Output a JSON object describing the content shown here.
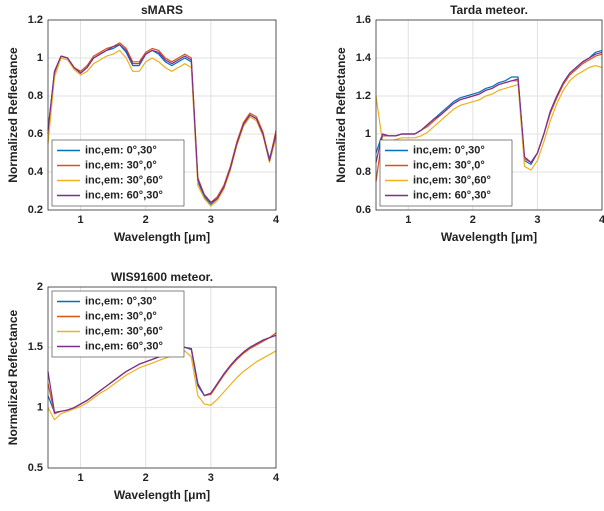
{
  "chart_data": [
    {
      "type": "line",
      "title": "sMARS",
      "xlabel": "Wavelength [μm]",
      "ylabel": "Normalized Reflectance",
      "x": [
        0.5,
        0.6,
        0.7,
        0.8,
        0.9,
        1,
        1.1,
        1.2,
        1.3,
        1.4,
        1.5,
        1.6,
        1.7,
        1.8,
        1.9,
        2,
        2.1,
        2.2,
        2.3,
        2.4,
        2.5,
        2.6,
        2.7,
        2.8,
        2.9,
        3,
        3.1,
        3.2,
        3.3,
        3.4,
        3.5,
        3.6,
        3.7,
        3.8,
        3.9,
        4
      ],
      "xlim": [
        0.5,
        4
      ],
      "xticks": [
        1,
        2,
        3,
        4
      ],
      "ylim": [
        0.2,
        1.2
      ],
      "yticks": [
        0.2,
        0.4,
        0.6,
        0.8,
        1,
        1.2
      ],
      "grid": true,
      "legend": "lower left",
      "series": [
        {
          "name": "inc,em: 0°,30°",
          "color": "#0072BD",
          "values": [
            0.62,
            0.93,
            1.01,
            1.0,
            0.95,
            0.92,
            0.95,
            1.0,
            1.02,
            1.04,
            1.05,
            1.07,
            1.03,
            0.96,
            0.96,
            1.02,
            1.04,
            1.02,
            0.98,
            0.96,
            0.98,
            1.0,
            0.98,
            0.35,
            0.27,
            0.23,
            0.26,
            0.32,
            0.42,
            0.55,
            0.65,
            0.7,
            0.68,
            0.6,
            0.47,
            0.6
          ]
        },
        {
          "name": "inc,em: 30°,0°",
          "color": "#D95319",
          "values": [
            0.6,
            0.92,
            1.01,
            1.0,
            0.95,
            0.93,
            0.96,
            1.01,
            1.03,
            1.05,
            1.06,
            1.08,
            1.05,
            0.98,
            0.98,
            1.03,
            1.05,
            1.04,
            1.0,
            0.98,
            1.0,
            1.02,
            1.0,
            0.37,
            0.28,
            0.24,
            0.27,
            0.33,
            0.43,
            0.56,
            0.66,
            0.71,
            0.69,
            0.61,
            0.46,
            0.62
          ]
        },
        {
          "name": "inc,em: 30°,60°",
          "color": "#EDB120",
          "values": [
            0.55,
            0.9,
            1.0,
            0.99,
            0.94,
            0.91,
            0.93,
            0.97,
            0.99,
            1.01,
            1.02,
            1.04,
            1.0,
            0.93,
            0.93,
            0.98,
            1.0,
            0.98,
            0.95,
            0.93,
            0.95,
            0.97,
            0.95,
            0.33,
            0.26,
            0.22,
            0.25,
            0.31,
            0.41,
            0.54,
            0.64,
            0.69,
            0.67,
            0.59,
            0.45,
            0.58
          ]
        },
        {
          "name": "inc,em: 60°,30°",
          "color": "#7E2F8E",
          "values": [
            0.62,
            0.93,
            1.01,
            1.0,
            0.95,
            0.92,
            0.95,
            1.0,
            1.02,
            1.04,
            1.06,
            1.07,
            1.04,
            0.97,
            0.97,
            1.02,
            1.04,
            1.03,
            0.99,
            0.97,
            0.99,
            1.01,
            0.99,
            0.36,
            0.28,
            0.24,
            0.26,
            0.32,
            0.42,
            0.55,
            0.65,
            0.7,
            0.68,
            0.6,
            0.46,
            0.6
          ]
        }
      ]
    },
    {
      "type": "line",
      "title": "Tarda meteor.",
      "xlabel": "Wavelength [μm]",
      "ylabel": "Normalized Reflectance",
      "x": [
        0.5,
        0.6,
        0.7,
        0.8,
        0.9,
        1,
        1.1,
        1.2,
        1.3,
        1.4,
        1.5,
        1.6,
        1.7,
        1.8,
        1.9,
        2,
        2.1,
        2.2,
        2.3,
        2.4,
        2.5,
        2.6,
        2.7,
        2.8,
        2.9,
        3,
        3.1,
        3.2,
        3.3,
        3.4,
        3.5,
        3.6,
        3.7,
        3.8,
        3.9,
        4
      ],
      "xlim": [
        0.5,
        4
      ],
      "xticks": [
        1,
        2,
        3,
        4
      ],
      "ylim": [
        0.6,
        1.6
      ],
      "yticks": [
        0.6,
        0.8,
        1,
        1.2,
        1.4,
        1.6
      ],
      "grid": true,
      "legend": "lower left",
      "series": [
        {
          "name": "inc,em: 0°,30°",
          "color": "#0072BD",
          "values": [
            0.9,
            1.0,
            0.99,
            0.99,
            1.0,
            1.0,
            1.0,
            1.02,
            1.05,
            1.08,
            1.11,
            1.14,
            1.17,
            1.19,
            1.2,
            1.21,
            1.22,
            1.24,
            1.25,
            1.27,
            1.28,
            1.3,
            1.3,
            0.86,
            0.84,
            0.9,
            1.0,
            1.12,
            1.2,
            1.27,
            1.32,
            1.35,
            1.38,
            1.4,
            1.43,
            1.44
          ]
        },
        {
          "name": "inc,em: 30°,0°",
          "color": "#D95319",
          "values": [
            0.75,
            0.99,
            0.99,
            0.99,
            1.0,
            1.0,
            1.0,
            1.02,
            1.04,
            1.07,
            1.1,
            1.13,
            1.16,
            1.18,
            1.19,
            1.2,
            1.21,
            1.23,
            1.24,
            1.26,
            1.27,
            1.28,
            1.28,
            0.87,
            0.85,
            0.9,
            1.0,
            1.11,
            1.19,
            1.26,
            1.31,
            1.34,
            1.37,
            1.39,
            1.41,
            1.42
          ]
        },
        {
          "name": "inc,em: 30°,60°",
          "color": "#EDB120",
          "values": [
            1.2,
            0.96,
            0.96,
            0.97,
            0.98,
            0.98,
            0.98,
            0.99,
            1.01,
            1.04,
            1.07,
            1.1,
            1.13,
            1.15,
            1.16,
            1.17,
            1.18,
            1.2,
            1.21,
            1.23,
            1.24,
            1.25,
            1.26,
            0.83,
            0.81,
            0.86,
            0.96,
            1.07,
            1.16,
            1.23,
            1.28,
            1.31,
            1.33,
            1.35,
            1.36,
            1.35
          ]
        },
        {
          "name": "inc,em: 60°,30°",
          "color": "#7E2F8E",
          "values": [
            0.85,
            1.0,
            0.99,
            0.99,
            1.0,
            1.0,
            1.0,
            1.02,
            1.05,
            1.08,
            1.1,
            1.13,
            1.16,
            1.18,
            1.19,
            1.2,
            1.21,
            1.23,
            1.24,
            1.26,
            1.27,
            1.28,
            1.29,
            0.88,
            0.85,
            0.9,
            1.0,
            1.12,
            1.2,
            1.27,
            1.32,
            1.35,
            1.38,
            1.4,
            1.42,
            1.43
          ]
        }
      ]
    },
    {
      "type": "line",
      "title": "WIS91600 meteor.",
      "xlabel": "Wavelength [μm]",
      "ylabel": "Normalized Reflectance",
      "x": [
        0.5,
        0.6,
        0.7,
        0.8,
        0.9,
        1,
        1.1,
        1.2,
        1.3,
        1.4,
        1.5,
        1.6,
        1.7,
        1.8,
        1.9,
        2,
        2.1,
        2.2,
        2.3,
        2.4,
        2.5,
        2.6,
        2.7,
        2.8,
        2.9,
        3,
        3.1,
        3.2,
        3.3,
        3.4,
        3.5,
        3.6,
        3.7,
        3.8,
        3.9,
        4
      ],
      "xlim": [
        0.5,
        4
      ],
      "xticks": [
        1,
        2,
        3,
        4
      ],
      "ylim": [
        0.5,
        2
      ],
      "yticks": [
        0.5,
        1,
        1.5,
        2
      ],
      "grid": true,
      "legend": "upper left",
      "series": [
        {
          "name": "inc,em: 0°,30°",
          "color": "#0072BD",
          "values": [
            1.1,
            0.96,
            0.97,
            0.98,
            1.0,
            1.03,
            1.06,
            1.1,
            1.14,
            1.18,
            1.22,
            1.26,
            1.3,
            1.33,
            1.36,
            1.38,
            1.4,
            1.42,
            1.44,
            1.46,
            1.48,
            1.5,
            1.48,
            1.18,
            1.1,
            1.12,
            1.2,
            1.28,
            1.35,
            1.41,
            1.46,
            1.5,
            1.53,
            1.56,
            1.58,
            1.6
          ]
        },
        {
          "name": "inc,em: 30°,0°",
          "color": "#D95319",
          "values": [
            1.2,
            0.95,
            0.97,
            0.98,
            1.0,
            1.03,
            1.06,
            1.1,
            1.14,
            1.18,
            1.22,
            1.26,
            1.3,
            1.33,
            1.36,
            1.38,
            1.4,
            1.42,
            1.44,
            1.46,
            1.48,
            1.5,
            1.49,
            1.2,
            1.1,
            1.11,
            1.19,
            1.27,
            1.34,
            1.4,
            1.45,
            1.49,
            1.52,
            1.55,
            1.58,
            1.62
          ]
        },
        {
          "name": "inc,em: 30°,60°",
          "color": "#EDB120",
          "values": [
            1.0,
            0.9,
            0.95,
            0.97,
            0.99,
            1.01,
            1.04,
            1.08,
            1.12,
            1.15,
            1.19,
            1.23,
            1.27,
            1.3,
            1.33,
            1.35,
            1.37,
            1.39,
            1.41,
            1.43,
            1.45,
            1.47,
            1.42,
            1.1,
            1.03,
            1.02,
            1.07,
            1.13,
            1.19,
            1.25,
            1.3,
            1.34,
            1.38,
            1.41,
            1.44,
            1.47
          ]
        },
        {
          "name": "inc,em: 60°,30°",
          "color": "#7E2F8E",
          "values": [
            1.3,
            0.96,
            0.97,
            0.98,
            1.0,
            1.03,
            1.06,
            1.1,
            1.14,
            1.18,
            1.22,
            1.26,
            1.3,
            1.33,
            1.36,
            1.38,
            1.4,
            1.42,
            1.44,
            1.46,
            1.48,
            1.5,
            1.49,
            1.2,
            1.1,
            1.12,
            1.2,
            1.28,
            1.35,
            1.41,
            1.46,
            1.5,
            1.53,
            1.56,
            1.58,
            1.6
          ]
        }
      ]
    }
  ]
}
